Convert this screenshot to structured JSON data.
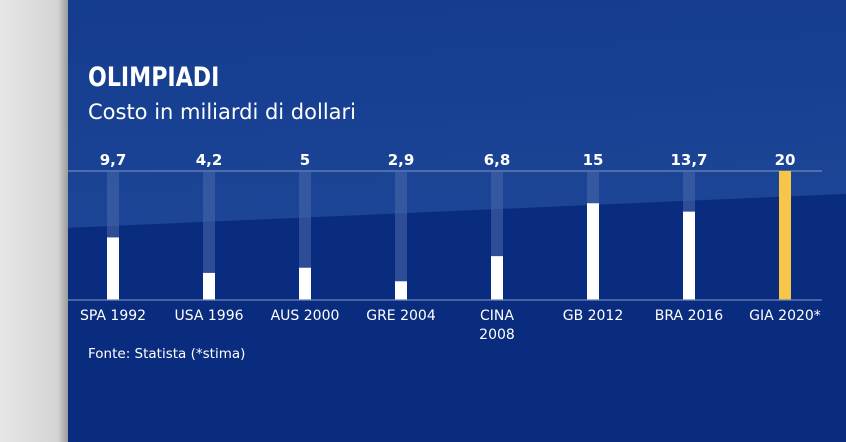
{
  "chart_data": {
    "type": "bar",
    "title": "OLIMPIADI",
    "subtitle": "Costo in miliardi di dollari",
    "source": "Fonte: Statista (*stima)",
    "categories": [
      "SPA 1992",
      "USA 1996",
      "AUS 2000",
      "GRE 2004",
      "CINA 2008",
      "GB 2012",
      "BRA 2016",
      "GIA 2020*"
    ],
    "value_labels": [
      "9,7",
      "4,2",
      "5",
      "2,9",
      "6,8",
      "15",
      "13,7",
      "20"
    ],
    "values": [
      9.7,
      4.2,
      5,
      2.9,
      6.8,
      15,
      13.7,
      20
    ],
    "ylim": [
      0,
      20
    ],
    "highlight_index": 7,
    "colors": {
      "bar": "#ffffff",
      "highlight": "#f7c548",
      "track": "#4a6aaa",
      "background": "#0a2c7e"
    },
    "grid": false
  }
}
